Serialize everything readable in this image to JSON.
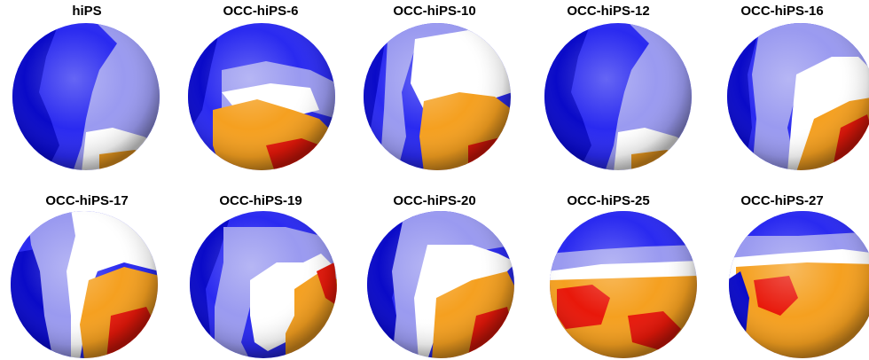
{
  "panels": [
    {
      "label": "hiPS",
      "pattern": "a"
    },
    {
      "label": "OCC-hiPS-6",
      "pattern": "b"
    },
    {
      "label": "OCC-hiPS-10",
      "pattern": "c"
    },
    {
      "label": "OCC-hiPS-12",
      "pattern": "a"
    },
    {
      "label": "OCC-hiPS-16",
      "pattern": "d"
    },
    {
      "label": "OCC-hiPS-17",
      "pattern": "e"
    },
    {
      "label": "OCC-hiPS-19",
      "pattern": "f"
    },
    {
      "label": "OCC-hiPS-20",
      "pattern": "g"
    },
    {
      "label": "OCC-hiPS-25",
      "pattern": "h"
    },
    {
      "label": "OCC-hiPS-27",
      "pattern": "i"
    }
  ],
  "colors": {
    "dark_blue": "#0a0ac8",
    "blue": "#2a2af0",
    "light_blue": "#9a9af0",
    "white": "#ffffff",
    "orange": "#f5a020",
    "red": "#e8180a"
  }
}
